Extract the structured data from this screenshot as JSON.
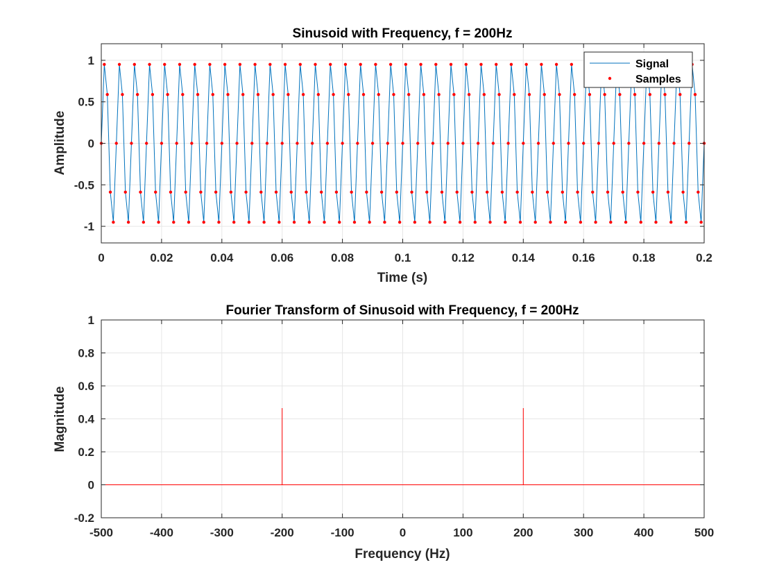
{
  "chart_data": [
    {
      "type": "line",
      "title": "Sinusoid with Frequency, f = 200Hz",
      "xlabel": "Time (s)",
      "ylabel": "Amplitude",
      "xlim": [
        0,
        0.2
      ],
      "ylim": [
        -1.2,
        1.2
      ],
      "xticks": [
        0,
        0.02,
        0.04,
        0.06,
        0.08,
        0.1,
        0.12,
        0.14,
        0.16,
        0.18,
        0.2
      ],
      "xtick_labels": [
        "0",
        "0.02",
        "0.04",
        "0.06",
        "0.08",
        "0.1",
        "0.12",
        "0.14",
        "0.16",
        "0.18",
        "0.2"
      ],
      "yticks": [
        -1,
        -0.5,
        0,
        0.5,
        1
      ],
      "ytick_labels": [
        "-1",
        "-0.5",
        "0",
        "0.5",
        "1"
      ],
      "grid": true,
      "legend_position": "top-right",
      "signal_frequency_hz": 200,
      "sample_interval_s": 0.001,
      "series": [
        {
          "name": "Signal",
          "style": "line",
          "color": "#0072BD"
        },
        {
          "name": "Samples",
          "style": "markers",
          "color": "#FF0000"
        }
      ],
      "x": [
        0,
        0.001,
        0.002,
        0.003,
        0.004,
        0.005,
        0.006,
        0.007,
        0.008,
        0.009,
        0.01,
        0.011,
        0.012,
        0.013,
        0.014,
        0.015,
        0.016,
        0.017,
        0.018,
        0.019,
        0.02,
        0.021,
        0.022,
        0.023,
        0.024,
        0.025,
        0.026,
        0.027,
        0.028,
        0.029,
        0.03,
        0.031,
        0.032,
        0.033,
        0.034,
        0.035,
        0.036,
        0.037,
        0.038,
        0.039,
        0.04,
        0.041,
        0.042,
        0.043,
        0.044,
        0.045,
        0.046,
        0.047,
        0.048,
        0.049,
        0.05,
        0.051,
        0.052,
        0.053,
        0.054,
        0.055,
        0.056,
        0.057,
        0.058,
        0.059,
        0.06,
        0.061,
        0.062,
        0.063,
        0.064,
        0.065,
        0.066,
        0.067,
        0.068,
        0.069,
        0.07,
        0.071,
        0.072,
        0.073,
        0.074,
        0.075,
        0.076,
        0.077,
        0.078,
        0.079,
        0.08,
        0.081,
        0.082,
        0.083,
        0.084,
        0.085,
        0.086,
        0.087,
        0.088,
        0.089,
        0.09,
        0.091,
        0.092,
        0.093,
        0.094,
        0.095,
        0.096,
        0.097,
        0.098,
        0.099,
        0.1,
        0.101,
        0.102,
        0.103,
        0.104,
        0.105,
        0.106,
        0.107,
        0.108,
        0.109,
        0.11,
        0.111,
        0.112,
        0.113,
        0.114,
        0.115,
        0.116,
        0.117,
        0.118,
        0.119,
        0.12,
        0.121,
        0.122,
        0.123,
        0.124,
        0.125,
        0.126,
        0.127,
        0.128,
        0.129,
        0.13,
        0.131,
        0.132,
        0.133,
        0.134,
        0.135,
        0.136,
        0.137,
        0.138,
        0.139,
        0.14,
        0.141,
        0.142,
        0.143,
        0.144,
        0.145,
        0.146,
        0.147,
        0.148,
        0.149,
        0.15,
        0.151,
        0.152,
        0.153,
        0.154,
        0.155,
        0.156,
        0.157,
        0.158,
        0.159,
        0.16,
        0.161,
        0.162,
        0.163,
        0.164,
        0.165,
        0.166,
        0.167,
        0.168,
        0.169,
        0.17,
        0.171,
        0.172,
        0.173,
        0.174,
        0.175,
        0.176,
        0.177,
        0.178,
        0.179,
        0.18,
        0.181,
        0.182,
        0.183,
        0.184,
        0.185,
        0.186,
        0.187,
        0.188,
        0.189,
        0.19,
        0.191,
        0.192,
        0.193,
        0.194,
        0.195,
        0.196,
        0.197,
        0.198,
        0.199,
        0.2
      ],
      "y": [
        0,
        0.951,
        0.588,
        -0.588,
        -0.951,
        0,
        0.951,
        0.588,
        -0.588,
        -0.951,
        0,
        0.951,
        0.588,
        -0.588,
        -0.951,
        0,
        0.951,
        0.588,
        -0.588,
        -0.951,
        0,
        0.951,
        0.588,
        -0.588,
        -0.951,
        0,
        0.951,
        0.588,
        -0.588,
        -0.951,
        0,
        0.951,
        0.588,
        -0.588,
        -0.951,
        0,
        0.951,
        0.588,
        -0.588,
        -0.951,
        0,
        0.951,
        0.588,
        -0.588,
        -0.951,
        0,
        0.951,
        0.588,
        -0.588,
        -0.951,
        0,
        0.951,
        0.588,
        -0.588,
        -0.951,
        0,
        0.951,
        0.588,
        -0.588,
        -0.951,
        0,
        0.951,
        0.588,
        -0.588,
        -0.951,
        0,
        0.951,
        0.588,
        -0.588,
        -0.951,
        0,
        0.951,
        0.588,
        -0.588,
        -0.951,
        0,
        0.951,
        0.588,
        -0.588,
        -0.951,
        0,
        0.951,
        0.588,
        -0.588,
        -0.951,
        0,
        0.951,
        0.588,
        -0.588,
        -0.951,
        0,
        0.951,
        0.588,
        -0.588,
        -0.951,
        0,
        0.951,
        0.588,
        -0.588,
        -0.951,
        0,
        0.951,
        0.588,
        -0.588,
        -0.951,
        0,
        0.951,
        0.588,
        -0.588,
        -0.951,
        0,
        0.951,
        0.588,
        -0.588,
        -0.951,
        0,
        0.951,
        0.588,
        -0.588,
        -0.951,
        0,
        0.951,
        0.588,
        -0.588,
        -0.951,
        0,
        0.951,
        0.588,
        -0.588,
        -0.951,
        0,
        0.951,
        0.588,
        -0.588,
        -0.951,
        0,
        0.951,
        0.588,
        -0.588,
        -0.951,
        0,
        0.951,
        0.588,
        -0.588,
        -0.951,
        0,
        0.951,
        0.588,
        -0.588,
        -0.951,
        0,
        0.951,
        0.588,
        -0.588,
        -0.951,
        0,
        0.951,
        0.588,
        -0.588,
        -0.951,
        0,
        0.951,
        0.588,
        -0.588,
        -0.951,
        0,
        0.951,
        0.588,
        -0.588,
        -0.951,
        0,
        0.951,
        0.588,
        -0.588,
        -0.951,
        0,
        0.951,
        0.588,
        -0.588,
        -0.951,
        0,
        0.951,
        0.588,
        -0.588,
        -0.951,
        0,
        0.951,
        0.588,
        -0.588,
        -0.951,
        0,
        0.951,
        0.588,
        -0.588,
        -0.951,
        0,
        0.951,
        0.588,
        -0.588,
        -0.951,
        0
      ]
    },
    {
      "type": "line",
      "title": "Fourier Transform of Sinusoid with Frequency, f = 200Hz",
      "xlabel": "Frequency (Hz)",
      "ylabel": "Magnitude",
      "xlim": [
        -500,
        500
      ],
      "ylim": [
        -0.2,
        1
      ],
      "xticks": [
        -500,
        -400,
        -300,
        -200,
        -100,
        0,
        100,
        200,
        300,
        400,
        500
      ],
      "xtick_labels": [
        "-500",
        "-400",
        "-300",
        "-200",
        "-100",
        "0",
        "100",
        "200",
        "300",
        "400",
        "500"
      ],
      "yticks": [
        -0.2,
        0,
        0.2,
        0.4,
        0.6,
        0.8,
        1
      ],
      "ytick_labels": [
        "-0.2",
        "0",
        "0.2",
        "0.4",
        "0.6",
        "0.8",
        "1"
      ],
      "grid": true,
      "series": [
        {
          "style": "line",
          "color": "#FF0000",
          "x": [
            -500,
            -200,
            -200,
            -200,
            200,
            200,
            200,
            500
          ],
          "y": [
            0,
            0,
            0.465,
            0,
            0,
            0.465,
            0,
            0
          ]
        }
      ]
    }
  ]
}
